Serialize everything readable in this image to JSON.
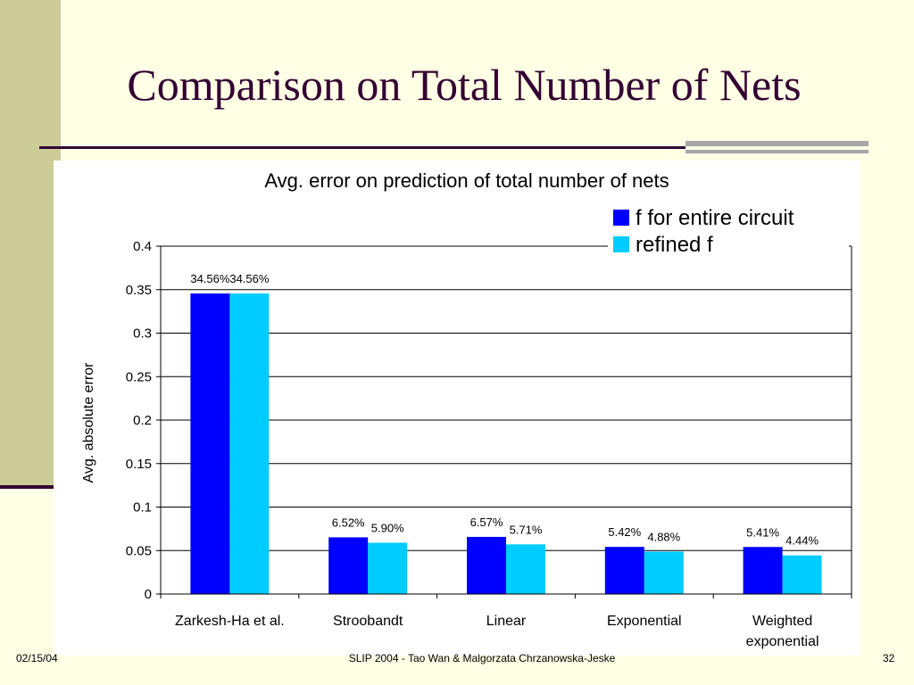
{
  "slide": {
    "title": "Comparison on Total Number of Nets",
    "footer_date": "02/15/04",
    "footer_center": "SLIP 2004  - Tao Wan & Malgorzata Chrzanowska-Jeske",
    "page_number": "32"
  },
  "colors": {
    "background": "#FFFFE5",
    "accent_band": "#CCCC99",
    "title_text": "#330033",
    "series_1": "#0000FF",
    "series_2": "#00CCFF"
  },
  "chart_data": {
    "type": "bar",
    "title": "Avg. error on prediction of total number of nets",
    "xlabel": "",
    "ylabel": "Avg. absolute error",
    "categories": [
      "Zarkesh-Ha et al.",
      "Stroobandt",
      "Linear",
      "Exponential",
      "Weighted exponential"
    ],
    "series": [
      {
        "name": "f for entire circuit",
        "values": [
          0.3456,
          0.0652,
          0.0657,
          0.0542,
          0.0541
        ],
        "labels": [
          "34.56%",
          "6.52%",
          "6.57%",
          "5.42%",
          "5.41%"
        ]
      },
      {
        "name": "refined f",
        "values": [
          0.3456,
          0.059,
          0.0571,
          0.0488,
          0.0444
        ],
        "labels": [
          "34.56%",
          "5.90%",
          "5.71%",
          "4.88%",
          "4.44%"
        ]
      }
    ],
    "ylim": [
      0,
      0.4
    ],
    "yticks": [
      "0",
      "0.05",
      "0.1",
      "0.15",
      "0.2",
      "0.25",
      "0.3",
      "0.35",
      "0.4"
    ],
    "grid": true,
    "legend_position": "top-right"
  }
}
